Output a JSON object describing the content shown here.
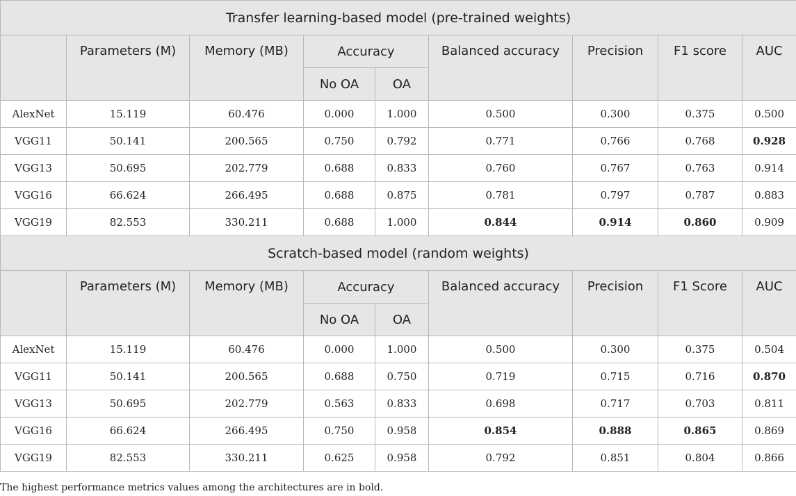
{
  "sections": [
    {
      "title": "Transfer learning-based model (pre-trained weights)",
      "headers": {
        "params": "Parameters (M)",
        "memory": "Memory (MB)",
        "accuracy": "Accuracy",
        "no_oa": "No OA",
        "oa": "OA",
        "balanced": "Balanced accuracy",
        "precision": "Precision",
        "f1": "F1 score",
        "auc": "AUC"
      },
      "rows": [
        {
          "model": "AlexNet",
          "params": "15.119",
          "memory": "60.476",
          "no_oa": "0.000",
          "oa": "1.000",
          "balanced": "0.500",
          "precision": "0.300",
          "f1": "0.375",
          "auc": "0.500"
        },
        {
          "model": "VGG11",
          "params": "50.141",
          "memory": "200.565",
          "no_oa": "0.750",
          "oa": "0.792",
          "balanced": "0.771",
          "precision": "0.766",
          "f1": "0.768",
          "auc": "0.928"
        },
        {
          "model": "VGG13",
          "params": "50.695",
          "memory": "202.779",
          "no_oa": "0.688",
          "oa": "0.833",
          "balanced": "0.760",
          "precision": "0.767",
          "f1": "0.763",
          "auc": "0.914"
        },
        {
          "model": "VGG16",
          "params": "66.624",
          "memory": "266.495",
          "no_oa": "0.688",
          "oa": "0.875",
          "balanced": "0.781",
          "precision": "0.797",
          "f1": "0.787",
          "auc": "0.883"
        },
        {
          "model": "VGG19",
          "params": "82.553",
          "memory": "330.211",
          "no_oa": "0.688",
          "oa": "1.000",
          "balanced": "0.844",
          "precision": "0.914",
          "f1": "0.860",
          "auc": "0.909"
        }
      ],
      "bold_cells": [
        [
          1,
          "auc"
        ],
        [
          4,
          "balanced"
        ],
        [
          4,
          "precision"
        ],
        [
          4,
          "f1"
        ]
      ]
    },
    {
      "title": "Scratch-based model (random weights)",
      "headers": {
        "params": "Parameters (M)",
        "memory": "Memory (MB)",
        "accuracy": "Accuracy",
        "no_oa": "No OA",
        "oa": "OA",
        "balanced": "Balanced accuracy",
        "precision": "Precision",
        "f1": "F1 Score",
        "auc": "AUC"
      },
      "rows": [
        {
          "model": "AlexNet",
          "params": "15.119",
          "memory": "60.476",
          "no_oa": "0.000",
          "oa": "1.000",
          "balanced": "0.500",
          "precision": "0.300",
          "f1": "0.375",
          "auc": "0.504"
        },
        {
          "model": "VGG11",
          "params": "50.141",
          "memory": "200.565",
          "no_oa": "0.688",
          "oa": "0.750",
          "balanced": "0.719",
          "precision": "0.715",
          "f1": "0.716",
          "auc": "0.870"
        },
        {
          "model": "VGG13",
          "params": "50.695",
          "memory": "202.779",
          "no_oa": "0.563",
          "oa": "0.833",
          "balanced": "0.698",
          "precision": "0.717",
          "f1": "0.703",
          "auc": "0.811"
        },
        {
          "model": "VGG16",
          "params": "66.624",
          "memory": "266.495",
          "no_oa": "0.750",
          "oa": "0.958",
          "balanced": "0.854",
          "precision": "0.888",
          "f1": "0.865",
          "auc": "0.869"
        },
        {
          "model": "VGG19",
          "params": "82.553",
          "memory": "330.211",
          "no_oa": "0.625",
          "oa": "0.958",
          "balanced": "0.792",
          "precision": "0.851",
          "f1": "0.804",
          "auc": "0.866"
        }
      ],
      "bold_cells": [
        [
          1,
          "auc"
        ],
        [
          3,
          "balanced"
        ],
        [
          3,
          "precision"
        ],
        [
          3,
          "f1"
        ]
      ]
    }
  ],
  "footnote": "The highest performance metrics values among the architectures are in bold."
}
